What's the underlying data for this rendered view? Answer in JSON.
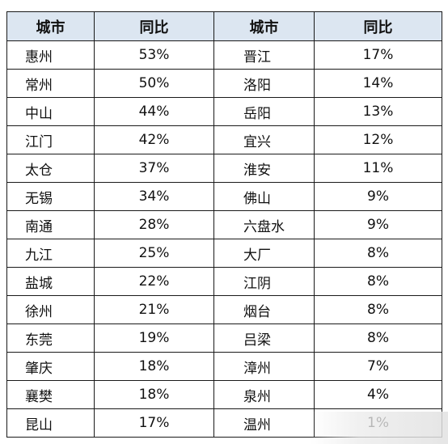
{
  "table": {
    "headers": [
      "城市",
      "同比",
      "城市",
      "同比"
    ],
    "rows": [
      {
        "city_a": "惠州",
        "pct_a": "53%",
        "city_b": "晋江",
        "pct_b": "17%"
      },
      {
        "city_a": "常州",
        "pct_a": "50%",
        "city_b": "洛阳",
        "pct_b": "14%"
      },
      {
        "city_a": "中山",
        "pct_a": "44%",
        "city_b": "岳阳",
        "pct_b": "13%"
      },
      {
        "city_a": "江门",
        "pct_a": "42%",
        "city_b": "宜兴",
        "pct_b": "12%"
      },
      {
        "city_a": "太仓",
        "pct_a": "37%",
        "city_b": "淮安",
        "pct_b": "11%"
      },
      {
        "city_a": "无锡",
        "pct_a": "34%",
        "city_b": "佛山",
        "pct_b": "9%"
      },
      {
        "city_a": "南通",
        "pct_a": "28%",
        "city_b": "六盘水",
        "pct_b": "9%"
      },
      {
        "city_a": "九江",
        "pct_a": "25%",
        "city_b": "大厂",
        "pct_b": "8%"
      },
      {
        "city_a": "盐城",
        "pct_a": "22%",
        "city_b": "江阴",
        "pct_b": "8%"
      },
      {
        "city_a": "徐州",
        "pct_a": "21%",
        "city_b": "烟台",
        "pct_b": "8%"
      },
      {
        "city_a": "东莞",
        "pct_a": "19%",
        "city_b": "吕梁",
        "pct_b": "8%"
      },
      {
        "city_a": "肇庆",
        "pct_a": "18%",
        "city_b": "漳州",
        "pct_b": "7%"
      },
      {
        "city_a": "襄樊",
        "pct_a": "18%",
        "city_b": "泉州",
        "pct_b": "4%"
      },
      {
        "city_a": "昆山",
        "pct_a": "17%",
        "city_b": "温州",
        "pct_b": "1%"
      }
    ]
  },
  "colors": {
    "header_bg": "#dce6f1",
    "border": "#1a1a1a",
    "text": "#111111"
  }
}
